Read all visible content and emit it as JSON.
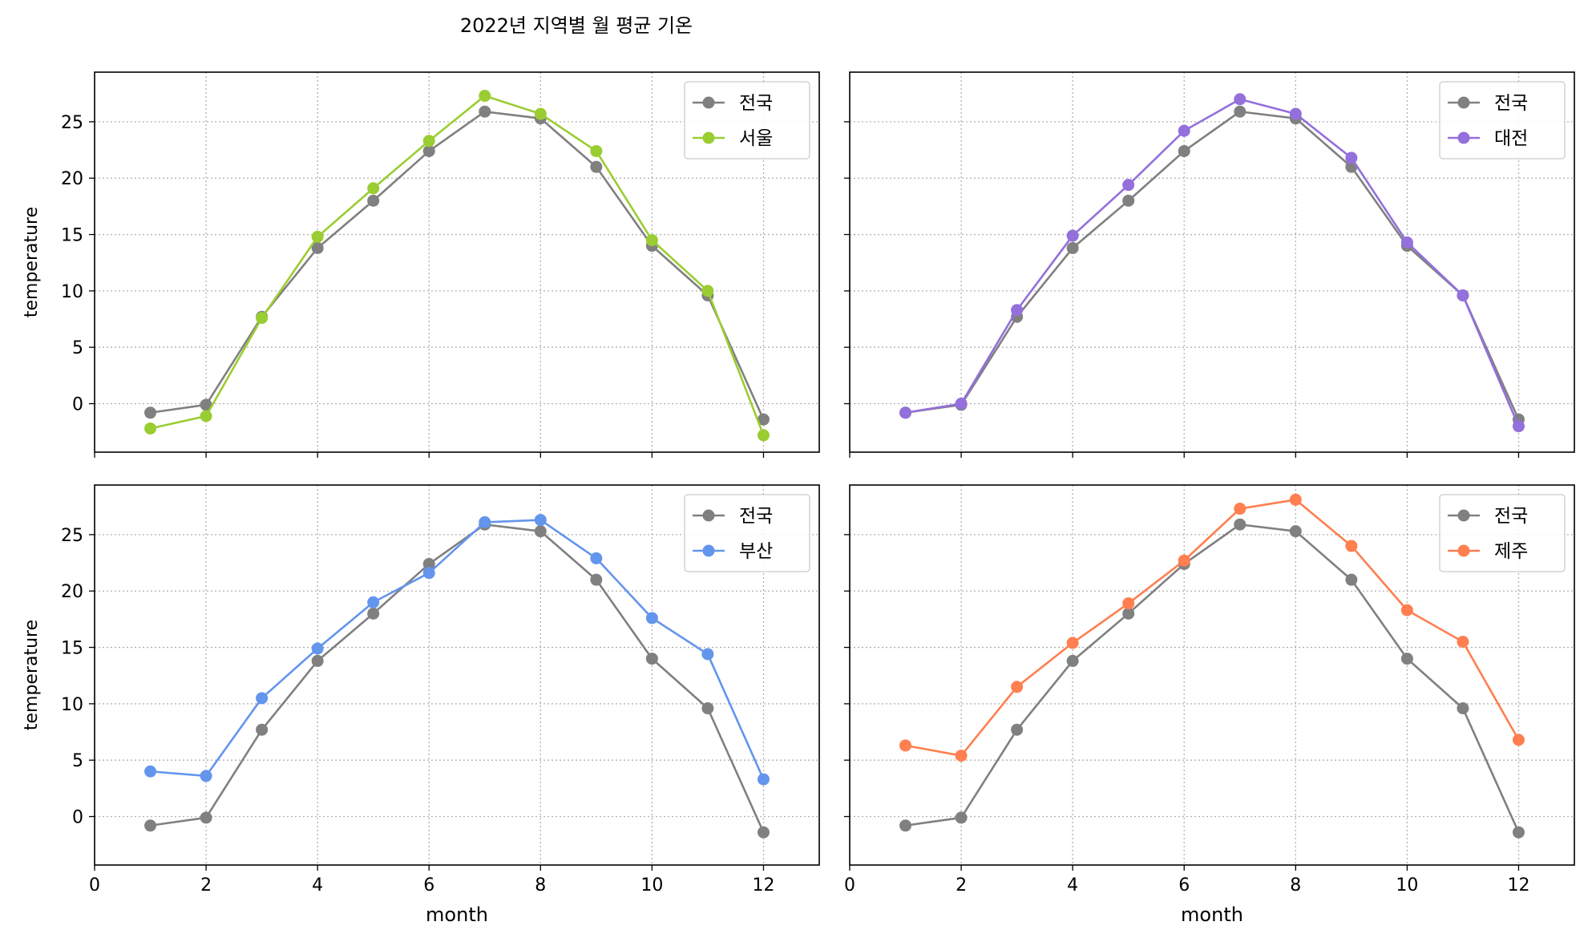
{
  "figure_title": "2022년 지역별 월 평균 기온",
  "chart_data": [
    {
      "type": "line",
      "xlabel": "",
      "ylabel": "temperature",
      "xlim": [
        0,
        13
      ],
      "ylim": [
        -4.3,
        29.4
      ],
      "xticks": [
        0,
        2,
        4,
        6,
        8,
        10,
        12
      ],
      "yticks": [
        0,
        5,
        10,
        15,
        20,
        25
      ],
      "grid": true,
      "legend_position": "top-right",
      "x": [
        1,
        2,
        3,
        4,
        5,
        6,
        7,
        8,
        9,
        10,
        11,
        12
      ],
      "series": [
        {
          "name": "전국",
          "color": "#808080",
          "values": [
            -0.8,
            -0.1,
            7.7,
            13.8,
            18.0,
            22.4,
            25.9,
            25.3,
            21.0,
            14.0,
            9.6,
            -1.4
          ]
        },
        {
          "name": "서울",
          "color": "#9ACD32",
          "values": [
            -2.2,
            -1.1,
            7.6,
            14.8,
            19.1,
            23.3,
            27.3,
            25.7,
            22.4,
            14.5,
            10.0,
            -2.8
          ]
        }
      ]
    },
    {
      "type": "line",
      "xlabel": "",
      "ylabel": "",
      "xlim": [
        0,
        13
      ],
      "ylim": [
        -4.3,
        29.4
      ],
      "xticks": [
        0,
        2,
        4,
        6,
        8,
        10,
        12
      ],
      "yticks": [
        0,
        5,
        10,
        15,
        20,
        25
      ],
      "grid": true,
      "legend_position": "top-right",
      "x": [
        1,
        2,
        3,
        4,
        5,
        6,
        7,
        8,
        9,
        10,
        11,
        12
      ],
      "series": [
        {
          "name": "전국",
          "color": "#808080",
          "values": [
            -0.8,
            -0.1,
            7.7,
            13.8,
            18.0,
            22.4,
            25.9,
            25.3,
            21.0,
            14.0,
            9.6,
            -1.4
          ]
        },
        {
          "name": "대전",
          "color": "#9370DB",
          "values": [
            -0.8,
            0.0,
            8.3,
            14.9,
            19.4,
            24.2,
            27.0,
            25.7,
            21.8,
            14.3,
            9.6,
            -2.0
          ]
        }
      ]
    },
    {
      "type": "line",
      "xlabel": "month",
      "ylabel": "temperature",
      "xlim": [
        0,
        13
      ],
      "ylim": [
        -4.3,
        29.4
      ],
      "xticks": [
        0,
        2,
        4,
        6,
        8,
        10,
        12
      ],
      "yticks": [
        0,
        5,
        10,
        15,
        20,
        25
      ],
      "grid": true,
      "legend_position": "top-right",
      "x": [
        1,
        2,
        3,
        4,
        5,
        6,
        7,
        8,
        9,
        10,
        11,
        12
      ],
      "series": [
        {
          "name": "전국",
          "color": "#808080",
          "values": [
            -0.8,
            -0.1,
            7.7,
            13.8,
            18.0,
            22.4,
            25.9,
            25.3,
            21.0,
            14.0,
            9.6,
            -1.4
          ]
        },
        {
          "name": "부산",
          "color": "#6495ED",
          "values": [
            4.0,
            3.6,
            10.5,
            14.9,
            19.0,
            21.6,
            26.1,
            26.3,
            22.9,
            17.6,
            14.4,
            3.3
          ]
        }
      ]
    },
    {
      "type": "line",
      "xlabel": "month",
      "ylabel": "",
      "xlim": [
        0,
        13
      ],
      "ylim": [
        -4.3,
        29.4
      ],
      "xticks": [
        0,
        2,
        4,
        6,
        8,
        10,
        12
      ],
      "yticks": [
        0,
        5,
        10,
        15,
        20,
        25
      ],
      "grid": true,
      "legend_position": "top-right",
      "x": [
        1,
        2,
        3,
        4,
        5,
        6,
        7,
        8,
        9,
        10,
        11,
        12
      ],
      "series": [
        {
          "name": "전국",
          "color": "#808080",
          "values": [
            -0.8,
            -0.1,
            7.7,
            13.8,
            18.0,
            22.4,
            25.9,
            25.3,
            21.0,
            14.0,
            9.6,
            -1.4
          ]
        },
        {
          "name": "제주",
          "color": "#FF7F50",
          "values": [
            6.3,
            5.4,
            11.5,
            15.4,
            18.9,
            22.7,
            27.3,
            28.1,
            24.0,
            18.3,
            15.5,
            6.8
          ]
        }
      ]
    }
  ]
}
